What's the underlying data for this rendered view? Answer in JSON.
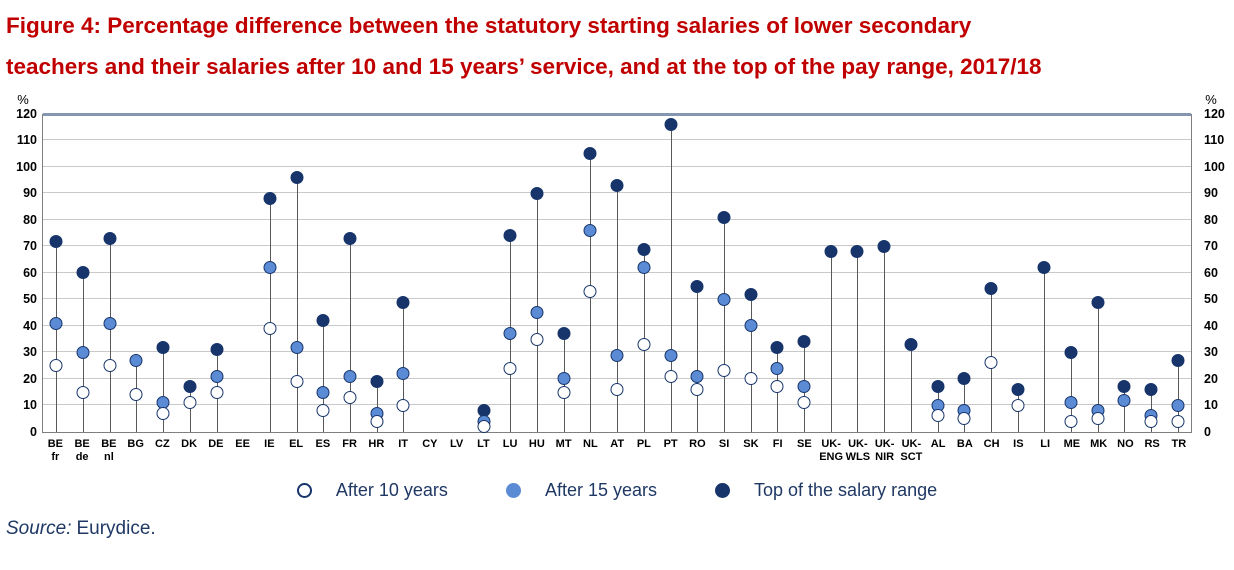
{
  "header": {
    "title_line1": "Figure 4: Percentage difference between the statutory starting salaries of lower secondary",
    "title_line2": "teachers and their salaries after 10 and 15 years’ service, and at the top of the pay range, 2017/18"
  },
  "source": {
    "prefix": "Source:",
    "text": "Eurydice."
  },
  "colors": {
    "title_red": "#C00000",
    "navy": "#17356B",
    "blue": "#5B8BD5",
    "text_navy": "#1F3864",
    "gridline": "#C9C9C9",
    "plot_border": "#7F7F7F",
    "top_border": "#8496B0",
    "stem": "#595959"
  },
  "chart_data": {
    "type": "scatter",
    "subtype": "lollipop",
    "unit": "%",
    "ylim": [
      0,
      120
    ],
    "ystep": 10,
    "yticks": [
      0,
      10,
      20,
      30,
      40,
      50,
      60,
      70,
      80,
      90,
      100,
      110,
      120
    ],
    "grid": true,
    "legend_position": "bottom-center",
    "categories": [
      {
        "l1": "BE",
        "l2": "fr"
      },
      {
        "l1": "BE",
        "l2": "de"
      },
      {
        "l1": "BE",
        "l2": "nl"
      },
      {
        "l1": "BG"
      },
      {
        "l1": "CZ"
      },
      {
        "l1": "DK"
      },
      {
        "l1": "DE"
      },
      {
        "l1": "EE"
      },
      {
        "l1": "IE"
      },
      {
        "l1": "EL"
      },
      {
        "l1": "ES"
      },
      {
        "l1": "FR"
      },
      {
        "l1": "HR"
      },
      {
        "l1": "IT"
      },
      {
        "l1": "CY"
      },
      {
        "l1": "LV"
      },
      {
        "l1": "LT"
      },
      {
        "l1": "LU"
      },
      {
        "l1": "HU"
      },
      {
        "l1": "MT"
      },
      {
        "l1": "NL"
      },
      {
        "l1": "AT"
      },
      {
        "l1": "PL"
      },
      {
        "l1": "PT"
      },
      {
        "l1": "RO"
      },
      {
        "l1": "SI"
      },
      {
        "l1": "SK"
      },
      {
        "l1": "FI"
      },
      {
        "l1": "SE"
      },
      {
        "l1": "UK-",
        "l2": "ENG"
      },
      {
        "l1": "UK-",
        "l2": "WLS"
      },
      {
        "l1": "UK-",
        "l2": "NIR"
      },
      {
        "l1": "UK-",
        "l2": "SCT"
      },
      {
        "l1": "AL"
      },
      {
        "l1": "BA"
      },
      {
        "l1": "CH"
      },
      {
        "l1": "IS"
      },
      {
        "l1": "LI"
      },
      {
        "l1": "ME"
      },
      {
        "l1": "MK"
      },
      {
        "l1": "NO"
      },
      {
        "l1": "RS"
      },
      {
        "l1": "TR"
      }
    ],
    "series": [
      {
        "name": "After 10 years",
        "marker": "open-circle",
        "color": "#FFFFFF",
        "values": [
          25,
          15,
          25,
          14,
          7,
          11,
          15,
          null,
          39,
          19,
          8,
          13,
          4,
          10,
          null,
          null,
          2,
          24,
          35,
          15,
          53,
          16,
          33,
          21,
          16,
          23,
          20,
          17,
          11,
          null,
          null,
          null,
          null,
          6,
          5,
          26,
          10,
          null,
          4,
          5,
          null,
          4,
          4
        ]
      },
      {
        "name": "After 15 years",
        "marker": "filled-circle",
        "color": "#5B8BD5",
        "values": [
          41,
          30,
          41,
          27,
          11,
          null,
          21,
          null,
          62,
          32,
          15,
          21,
          7,
          22,
          null,
          null,
          4,
          37,
          45,
          20,
          76,
          29,
          62,
          29,
          21,
          50,
          40,
          24,
          17,
          null,
          null,
          null,
          null,
          10,
          8,
          null,
          null,
          null,
          11,
          8,
          12,
          6,
          10
        ]
      },
      {
        "name": "Top of the salary range",
        "marker": "filled-circle",
        "color": "#17356B",
        "values": [
          72,
          60,
          73,
          null,
          32,
          17,
          31,
          null,
          88,
          96,
          42,
          73,
          19,
          49,
          null,
          null,
          8,
          74,
          90,
          37,
          105,
          93,
          69,
          116,
          55,
          81,
          52,
          32,
          34,
          68,
          68,
          70,
          33,
          17,
          20,
          54,
          16,
          62,
          30,
          49,
          17,
          16,
          27
        ]
      }
    ]
  }
}
